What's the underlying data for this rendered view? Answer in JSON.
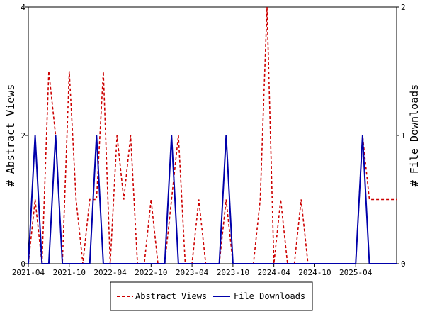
{
  "chart_data": {
    "type": "line",
    "title": "",
    "xlabel": "",
    "ylabel_left": "# Abstract Views",
    "ylabel_right": "# File Downloads",
    "ylim_left": [
      0,
      4
    ],
    "ylim_right": [
      0,
      2
    ],
    "yticks_left": [
      "0",
      "2",
      "4"
    ],
    "yticks_right": [
      "0",
      "1",
      "2"
    ],
    "xlim": [
      "2021-04",
      "2025-10"
    ],
    "xticks": [
      "2021-04",
      "2021-10",
      "2022-04",
      "2022-10",
      "2023-04",
      "2023-10",
      "2024-04",
      "2024-10",
      "2025-04"
    ],
    "grid": false,
    "legend_position": "bottom-center",
    "series": [
      {
        "name": "Abstract Views",
        "axis": "left",
        "color": "#cc0000",
        "style": "dashed",
        "x": [
          "2021-04",
          "2021-05",
          "2021-06",
          "2021-07",
          "2021-08",
          "2021-09",
          "2021-10",
          "2021-11",
          "2021-12",
          "2022-01",
          "2022-02",
          "2022-03",
          "2022-04",
          "2022-05",
          "2022-06",
          "2022-07",
          "2022-08",
          "2022-09",
          "2022-10",
          "2022-11",
          "2022-12",
          "2023-01",
          "2023-02",
          "2023-03",
          "2023-04",
          "2023-05",
          "2023-06",
          "2023-07",
          "2023-08",
          "2023-09",
          "2023-10",
          "2023-11",
          "2023-12",
          "2024-01",
          "2024-02",
          "2024-03",
          "2024-04",
          "2024-05",
          "2024-06",
          "2024-07",
          "2024-08",
          "2024-09",
          "2024-10",
          "2024-11",
          "2024-12",
          "2025-01",
          "2025-02",
          "2025-03",
          "2025-04",
          "2025-05",
          "2025-06",
          "2025-07",
          "2025-08",
          "2025-09",
          "2025-10"
        ],
        "values": [
          0,
          1,
          0,
          3,
          2,
          0,
          3,
          1,
          0,
          1,
          1,
          3,
          0,
          2,
          1,
          2,
          0,
          0,
          1,
          0,
          0,
          1,
          2,
          0,
          0,
          1,
          0,
          0,
          0,
          1,
          0,
          0,
          0,
          0,
          1,
          4,
          0,
          1,
          0,
          0,
          1,
          0,
          0,
          0,
          0,
          0,
          0,
          0,
          0,
          2,
          1,
          1,
          1,
          1,
          1
        ]
      },
      {
        "name": "File Downloads",
        "axis": "right",
        "color": "#0000aa",
        "style": "solid",
        "x": [
          "2021-04",
          "2021-05",
          "2021-06",
          "2021-07",
          "2021-08",
          "2021-09",
          "2021-10",
          "2021-11",
          "2021-12",
          "2022-01",
          "2022-02",
          "2022-03",
          "2022-04",
          "2022-05",
          "2022-06",
          "2022-07",
          "2022-08",
          "2022-09",
          "2022-10",
          "2022-11",
          "2022-12",
          "2023-01",
          "2023-02",
          "2023-03",
          "2023-04",
          "2023-05",
          "2023-06",
          "2023-07",
          "2023-08",
          "2023-09",
          "2023-10",
          "2023-11",
          "2023-12",
          "2024-01",
          "2024-02",
          "2024-03",
          "2024-04",
          "2024-05",
          "2024-06",
          "2024-07",
          "2024-08",
          "2024-09",
          "2024-10",
          "2024-11",
          "2024-12",
          "2025-01",
          "2025-02",
          "2025-03",
          "2025-04",
          "2025-05",
          "2025-06",
          "2025-07",
          "2025-08",
          "2025-09",
          "2025-10"
        ],
        "values": [
          0,
          1,
          0,
          0,
          1,
          0,
          0,
          0,
          0,
          0,
          1,
          0,
          0,
          0,
          0,
          0,
          0,
          0,
          0,
          0,
          0,
          1,
          0,
          0,
          0,
          0,
          0,
          0,
          0,
          1,
          0,
          0,
          0,
          0,
          0,
          0,
          0,
          0,
          0,
          0,
          0,
          0,
          0,
          0,
          0,
          0,
          0,
          0,
          0,
          1,
          0,
          0,
          0,
          0,
          0
        ]
      }
    ]
  }
}
